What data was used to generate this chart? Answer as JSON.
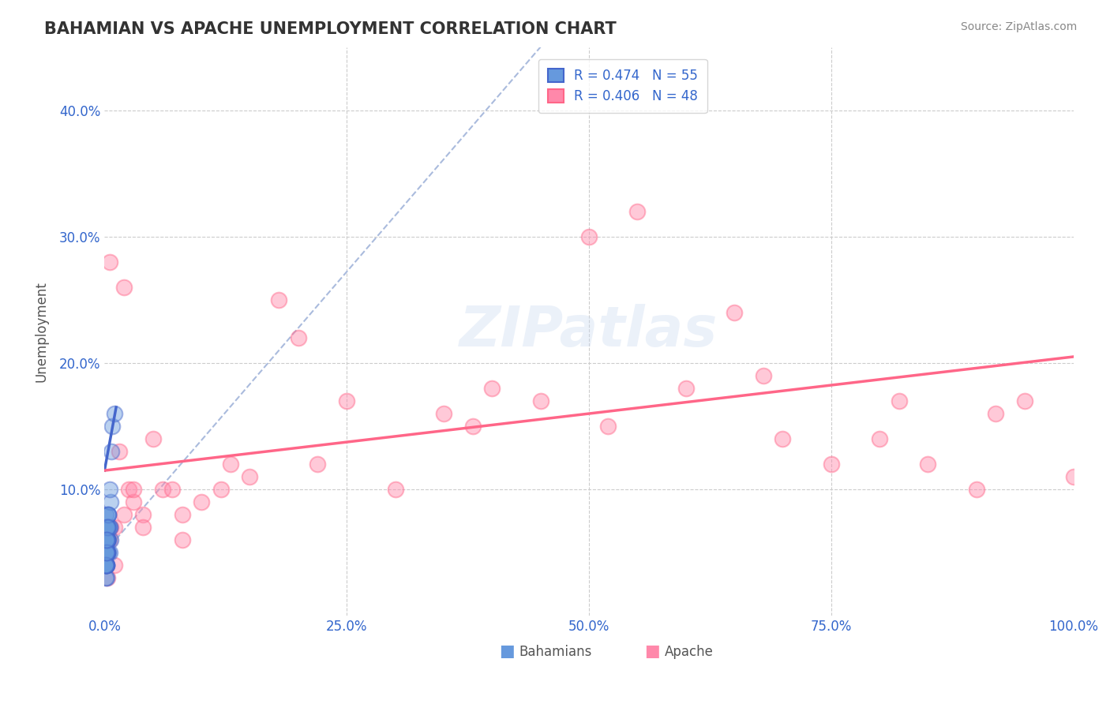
{
  "title": "BAHAMIAN VS APACHE UNEMPLOYMENT CORRELATION CHART",
  "source_text": "Source: ZipAtlas.com",
  "ylabel_text": "Unemployment",
  "xlim": [
    0,
    1.0
  ],
  "ylim": [
    0,
    0.45
  ],
  "xticks": [
    0.0,
    0.25,
    0.5,
    0.75,
    1.0
  ],
  "xtick_labels": [
    "0.0%",
    "25.0%",
    "50.0%",
    "75.0%",
    "100.0%"
  ],
  "yticks": [
    0.0,
    0.1,
    0.2,
    0.3,
    0.4
  ],
  "ytick_labels": [
    "",
    "10.0%",
    "20.0%",
    "30.0%",
    "40.0%"
  ],
  "grid_color": "#cccccc",
  "background_color": "#ffffff",
  "legend_color": "#3366cc",
  "blue_marker_color": "#6699dd",
  "pink_marker_color": "#ff88aa",
  "blue_line_color": "#4466cc",
  "pink_line_color": "#ff6688",
  "ref_line_color": "#aabbdd",
  "bahamian_x": [
    0.001,
    0.002,
    0.003,
    0.001,
    0.002,
    0.001,
    0.003,
    0.004,
    0.002,
    0.001,
    0.003,
    0.005,
    0.002,
    0.001,
    0.002,
    0.003,
    0.004,
    0.002,
    0.001,
    0.006,
    0.003,
    0.002,
    0.004,
    0.001,
    0.002,
    0.003,
    0.005,
    0.002,
    0.001,
    0.003,
    0.004,
    0.002,
    0.001,
    0.003,
    0.002,
    0.004,
    0.003,
    0.002,
    0.001,
    0.005,
    0.003,
    0.002,
    0.004,
    0.001,
    0.003,
    0.002,
    0.006,
    0.004,
    0.002,
    0.003,
    0.007,
    0.005,
    0.002,
    0.008,
    0.01
  ],
  "bahamian_y": [
    0.04,
    0.03,
    0.05,
    0.06,
    0.04,
    0.07,
    0.05,
    0.08,
    0.04,
    0.03,
    0.06,
    0.05,
    0.04,
    0.05,
    0.06,
    0.07,
    0.05,
    0.04,
    0.08,
    0.06,
    0.05,
    0.07,
    0.06,
    0.04,
    0.05,
    0.06,
    0.07,
    0.05,
    0.04,
    0.06,
    0.07,
    0.05,
    0.04,
    0.06,
    0.05,
    0.07,
    0.06,
    0.05,
    0.04,
    0.07,
    0.06,
    0.05,
    0.08,
    0.04,
    0.07,
    0.06,
    0.09,
    0.08,
    0.05,
    0.07,
    0.13,
    0.1,
    0.06,
    0.15,
    0.16
  ],
  "apache_x": [
    0.002,
    0.005,
    0.01,
    0.015,
    0.02,
    0.025,
    0.03,
    0.04,
    0.05,
    0.06,
    0.08,
    0.1,
    0.12,
    0.15,
    0.18,
    0.2,
    0.25,
    0.3,
    0.35,
    0.4,
    0.45,
    0.5,
    0.55,
    0.6,
    0.65,
    0.7,
    0.75,
    0.8,
    0.85,
    0.9,
    0.95,
    1.0,
    0.03,
    0.07,
    0.13,
    0.22,
    0.38,
    0.52,
    0.68,
    0.82,
    0.92,
    0.005,
    0.01,
    0.02,
    0.04,
    0.08,
    0.003,
    0.006
  ],
  "apache_y": [
    0.05,
    0.28,
    0.04,
    0.13,
    0.26,
    0.1,
    0.09,
    0.08,
    0.14,
    0.1,
    0.08,
    0.09,
    0.1,
    0.11,
    0.25,
    0.22,
    0.17,
    0.1,
    0.16,
    0.18,
    0.17,
    0.3,
    0.32,
    0.18,
    0.24,
    0.14,
    0.12,
    0.14,
    0.12,
    0.1,
    0.17,
    0.11,
    0.1,
    0.1,
    0.12,
    0.12,
    0.15,
    0.15,
    0.19,
    0.17,
    0.16,
    0.06,
    0.07,
    0.08,
    0.07,
    0.06,
    0.03,
    0.07
  ],
  "bahamian_trend_x": [
    0.0,
    0.012
  ],
  "bahamian_trend_y": [
    0.115,
    0.165
  ],
  "apache_trend_x": [
    0.0,
    1.0
  ],
  "apache_trend_y": [
    0.115,
    0.205
  ]
}
